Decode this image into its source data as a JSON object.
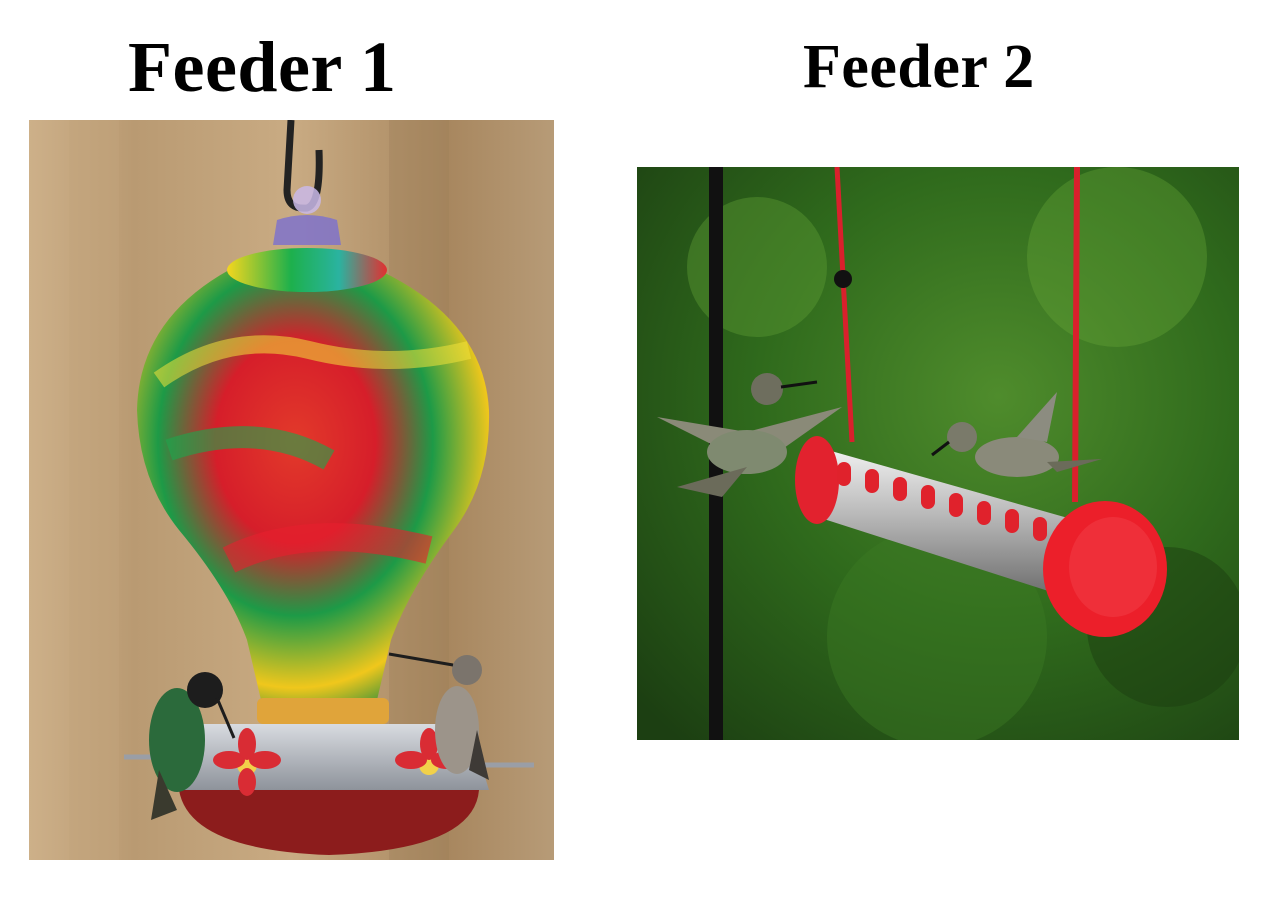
{
  "panels": [
    {
      "title": "Feeder 1"
    },
    {
      "title": "Feeder 2"
    }
  ],
  "colors": {
    "background": "#ffffff",
    "title_text": "#000000",
    "feeder1_glass": [
      "#1aa64a",
      "#e62020",
      "#f5d21a",
      "#1e88c8"
    ],
    "feeder1_base": "#b8bcc4",
    "feeder1_tray": "#8c1c1c",
    "feeder2_tube": "#c8c8c8",
    "feeder2_red": "#e6222e",
    "feeder2_background": "#2f6a1c"
  },
  "icons": {
    "feeder1": "hummingbird-feeder-glass-icon",
    "feeder2": "hummingbird-feeder-tube-icon"
  }
}
